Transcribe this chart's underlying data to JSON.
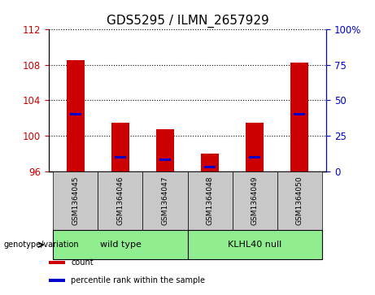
{
  "title": "GDS5295 / ILMN_2657929",
  "samples": [
    "GSM1364045",
    "GSM1364046",
    "GSM1364047",
    "GSM1364048",
    "GSM1364049",
    "GSM1364050"
  ],
  "ylim_left": [
    96,
    112
  ],
  "ylim_right": [
    0,
    100
  ],
  "yticks_left": [
    96,
    100,
    104,
    108,
    112
  ],
  "yticks_right": [
    0,
    25,
    50,
    75,
    100
  ],
  "ytick_labels_right": [
    "0",
    "25",
    "50",
    "75",
    "100%"
  ],
  "bar_base": 96,
  "red_tops": [
    108.5,
    101.5,
    100.7,
    98.0,
    101.5,
    108.3
  ],
  "blue_values": [
    102.4,
    97.6,
    97.3,
    96.5,
    97.6,
    102.4
  ],
  "bar_color": "#cc0000",
  "blue_color": "#0000cc",
  "groups": [
    {
      "label": "wild type",
      "indices": [
        0,
        1,
        2
      ],
      "color": "#90ee90"
    },
    {
      "label": "KLHL40 null",
      "indices": [
        3,
        4,
        5
      ],
      "color": "#90ee90"
    }
  ],
  "group_label": "genotype/variation",
  "legend_items": [
    {
      "label": "count",
      "color": "#cc0000"
    },
    {
      "label": "percentile rank within the sample",
      "color": "#0000cc"
    }
  ],
  "bar_width": 0.4,
  "title_fontsize": 11,
  "axis_label_color_left": "#cc0000",
  "axis_label_color_right": "#0000cc",
  "bg_color_sample": "#c8c8c8"
}
